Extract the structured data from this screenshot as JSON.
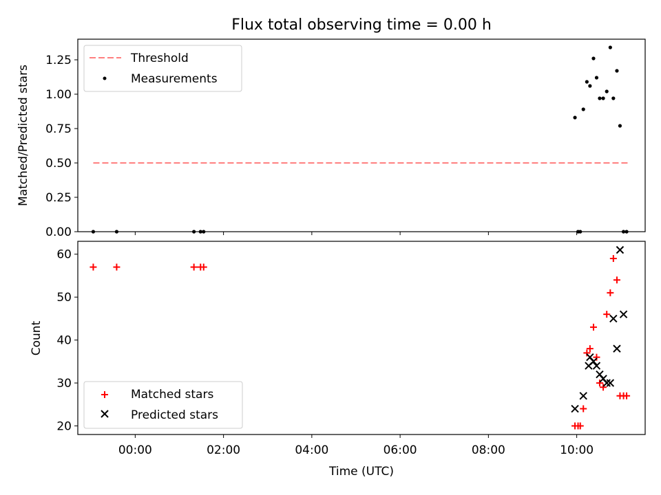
{
  "figure": {
    "title": "Flux total observing time = 0.00 h"
  },
  "chart_data": [
    {
      "type": "scatter",
      "ylabel": "Matched/Predicted stars",
      "xlabel": "",
      "xlim": [
        "-1.3",
        "11.55"
      ],
      "ylim": [
        0,
        1.4
      ],
      "yticks": [
        "0.00",
        "0.25",
        "0.50",
        "0.75",
        "1.00",
        "1.25"
      ],
      "grid": false,
      "legend_placement": "upper-left",
      "series": [
        {
          "name": "Threshold",
          "kind": "dashed-line",
          "color": "#ff7f7f",
          "x": [
            -0.95,
            11.2
          ],
          "y": [
            0.5,
            0.5
          ]
        },
        {
          "name": "Measurements",
          "kind": "dot",
          "color": "#000000",
          "x": [
            -0.95,
            -0.42,
            1.33,
            1.48,
            1.55,
            9.96,
            10.03,
            10.08,
            10.15,
            10.23,
            10.3,
            10.38,
            10.45,
            10.52,
            10.6,
            10.68,
            10.76,
            10.83,
            10.91,
            10.98,
            11.06,
            11.13
          ],
          "y": [
            0,
            0,
            0,
            0,
            0,
            0.83,
            0,
            0,
            0.89,
            1.09,
            1.06,
            1.26,
            1.12,
            0.97,
            0.97,
            1.02,
            1.34,
            0.97,
            1.17,
            0.77,
            0,
            0
          ]
        }
      ]
    },
    {
      "type": "scatter",
      "ylabel": "Count",
      "xlabel": "Time (UTC)",
      "xlim": [
        "-1.3",
        "11.55"
      ],
      "ylim": [
        18,
        63
      ],
      "yticks": [
        "20",
        "30",
        "40",
        "50",
        "60"
      ],
      "xticks": [
        "00:00",
        "02:00",
        "04:00",
        "06:00",
        "08:00",
        "10:00"
      ],
      "grid": false,
      "legend_placement": "lower-left",
      "series": [
        {
          "name": "Matched stars",
          "kind": "plus",
          "color": "#ff0000",
          "x": [
            -0.95,
            -0.42,
            1.33,
            1.48,
            1.55,
            9.96,
            10.03,
            10.08,
            10.15,
            10.23,
            10.3,
            10.38,
            10.45,
            10.52,
            10.6,
            10.68,
            10.76,
            10.83,
            10.91,
            10.98,
            11.06,
            11.13
          ],
          "y": [
            57,
            57,
            57,
            57,
            57,
            20,
            20,
            20,
            24,
            37,
            38,
            43,
            36,
            30,
            29,
            46,
            51,
            59,
            54,
            27,
            27,
            27
          ]
        },
        {
          "name": "Predicted stars",
          "kind": "x",
          "color": "#000000",
          "x": [
            9.96,
            10.15,
            10.27,
            10.3,
            10.38,
            10.45,
            10.52,
            10.6,
            10.68,
            10.76,
            10.83,
            10.91,
            10.98,
            11.06
          ],
          "y": [
            24,
            27,
            34,
            36,
            35,
            34,
            32,
            31,
            30,
            30,
            45,
            38,
            61,
            46
          ]
        }
      ]
    }
  ]
}
